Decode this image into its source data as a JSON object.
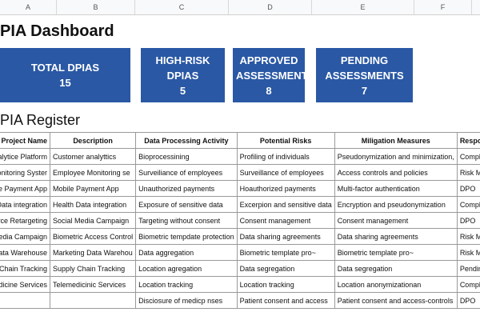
{
  "column_letters": [
    "A",
    "B",
    "C",
    "D",
    "E",
    "F"
  ],
  "header": {
    "title": "PIA Dashboard"
  },
  "cards": [
    {
      "label": "TOTAL DPIAS",
      "value": 15
    },
    {
      "label": "HIGH-RISK DPIAS",
      "value": 5
    },
    {
      "label": "APPROVED ASSESSMENTS",
      "value": 8
    },
    {
      "label": "PENDING ASSESSMENTS",
      "value": 7
    }
  ],
  "register": {
    "title": "PIA Register",
    "columns": [
      "Project Name",
      "Description",
      "Data Processing Activity",
      "Potential Risks",
      "Miligation Measures",
      "Responsibs Owne"
    ],
    "rows": [
      [
        "omer Analytice Platform",
        "Customer analyttics",
        "Bioprocessining",
        "Profiling of individuals",
        "Pseudonymization and minimization,",
        "Compliance Officer"
      ],
      [
        "oyee Monitoring Syster",
        "Employee Monitoring  se",
        "Surveiliance of employees",
        "Surveillance of employees",
        "Access controls and policies",
        "Risk Manager"
      ],
      [
        "obile Payment App",
        "Mobile Payment App",
        "Unauthorized payments",
        "Hoauthorized payments",
        "Multi-factor authentication",
        "DPO"
      ],
      [
        "th Data integration",
        "Health Data integration",
        "Exposure of sensitive data",
        "Excerpion and sensitive data",
        "Encryption and pseudonymization",
        "Compliance"
      ],
      [
        "ommerce Retargeting",
        "Social Media Campaign",
        "Targeting without consent",
        "Consent management",
        "Consent management",
        "DPO"
      ],
      [
        "ial Media Campaign",
        "Biometric Access Control",
        "Biometric tempdate protection",
        "Data sharing agreements",
        "Data sharing agreements",
        "Risk Manager"
      ],
      [
        "ramic Data Warehouse",
        "Marketing Data Warehou",
        "Data aggregation",
        "Biometric template pro~",
        "Biometric template pro~",
        "Risk Managerin"
      ],
      [
        "upply Chain Tracking",
        "Supply Chain Tracking",
        "Location agregation",
        "Data segregation",
        "Data segregation",
        "Pending"
      ],
      [
        "emedicine Services",
        "Telemedicinic Services",
        "Location tracking",
        "Location tracking",
        "Location anonymizationan",
        "Compliance Officer"
      ],
      [
        null,
        "",
        "Disciosure of medicp nses",
        "Patient consent and access",
        "Patient consent and access-controls",
        "DPO"
      ]
    ]
  }
}
